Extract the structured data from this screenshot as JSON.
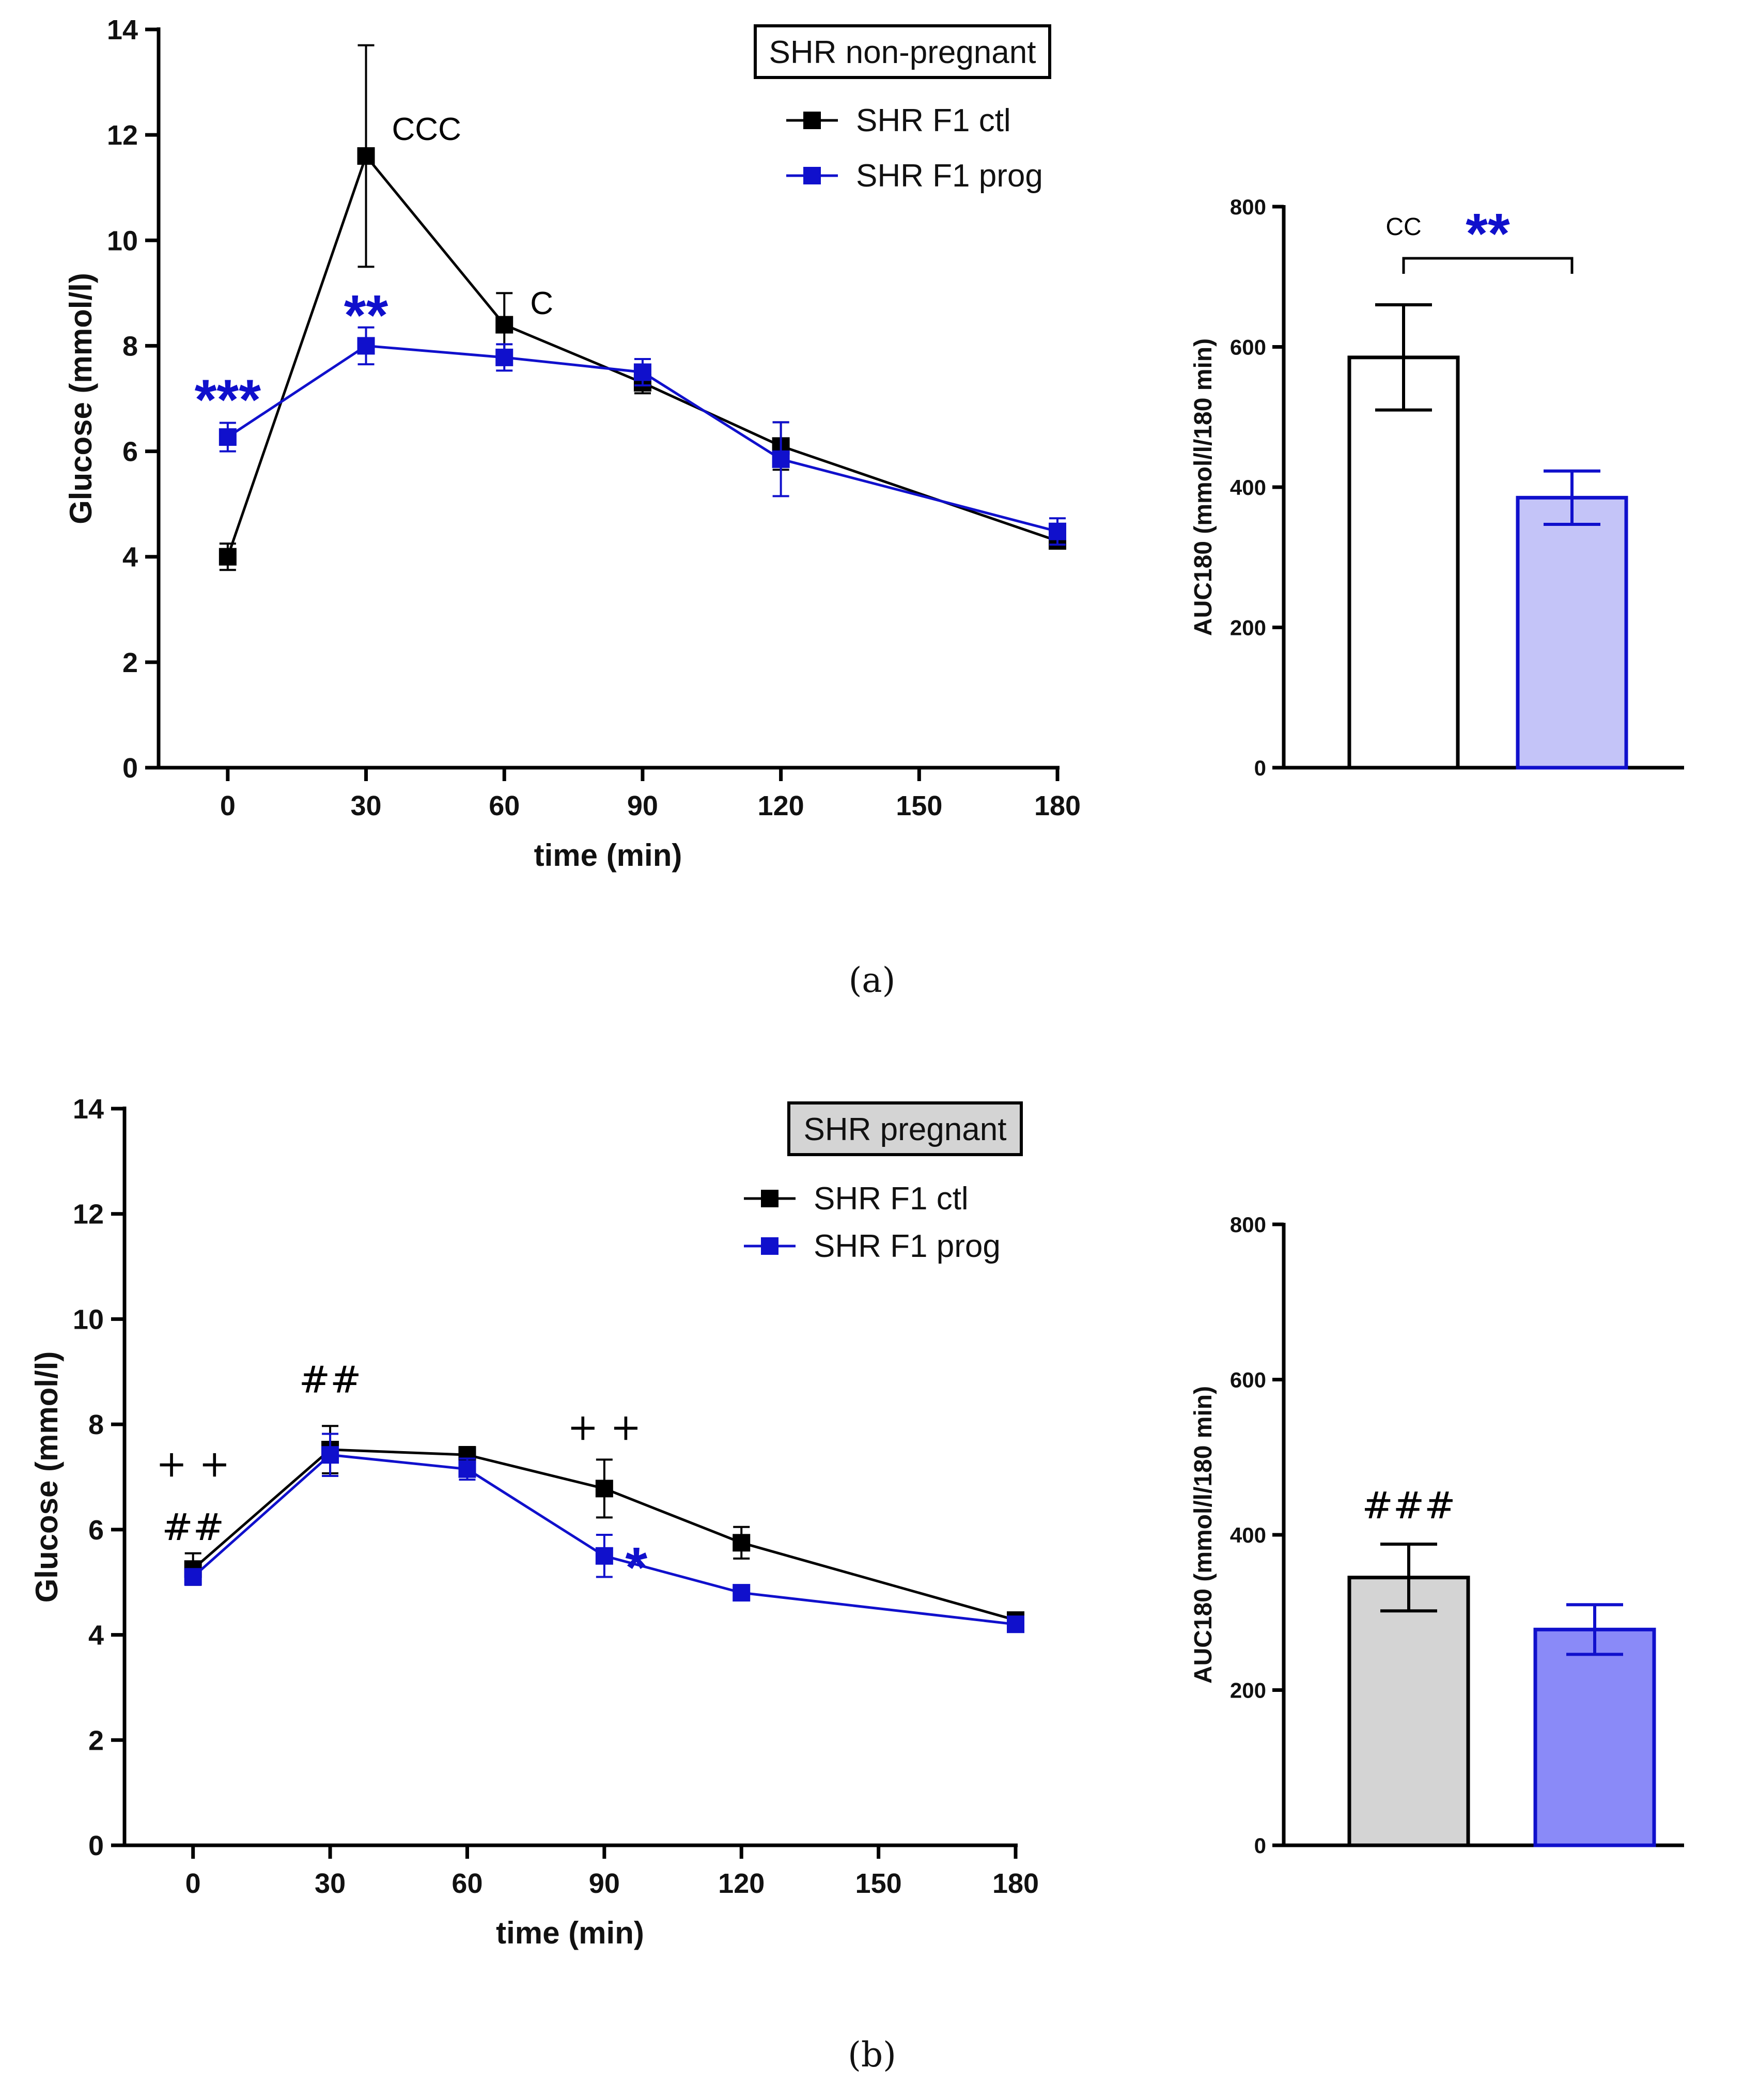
{
  "colors": {
    "ctl": "#000000",
    "prog": "#1010cc",
    "stat_blue": "#1a1add"
  },
  "chart_data": [
    {
      "id": "a-line",
      "type": "line",
      "title": "SHR non-pregnant",
      "xlabel": "time (min)",
      "ylabel": "Glucose (mmol/l)",
      "xlim": [
        -15,
        180
      ],
      "ylim": [
        0,
        14
      ],
      "xticks": [
        0,
        30,
        60,
        90,
        120,
        150,
        180
      ],
      "yticks": [
        0,
        2,
        4,
        6,
        8,
        10,
        12,
        14
      ],
      "x": [
        0,
        30,
        60,
        90,
        120,
        180
      ],
      "series": [
        {
          "name": "SHR F1 ctl",
          "values": [
            4.0,
            11.6,
            8.4,
            7.3,
            6.1,
            4.3
          ],
          "err": [
            0.25,
            2.1,
            0.6,
            0.2,
            0.45,
            0.1
          ]
        },
        {
          "name": "SHR F1 prog",
          "values": [
            6.27,
            8.0,
            7.78,
            7.5,
            5.85,
            4.48
          ],
          "err": [
            0.27,
            0.35,
            0.25,
            0.25,
            0.7,
            0.25
          ]
        }
      ],
      "annotations": [
        {
          "text": "***",
          "x": 0,
          "y": 7.0,
          "color": "prog",
          "style": "star"
        },
        {
          "text": "**",
          "x": 30,
          "y": 8.6,
          "color": "prog",
          "style": "star"
        },
        {
          "text": "CCC",
          "x": 30,
          "y": 12.1,
          "color": "ctl",
          "style": "text"
        },
        {
          "text": "C",
          "x": 60,
          "y": 8.8,
          "color": "ctl",
          "style": "text"
        }
      ]
    },
    {
      "id": "a-bar",
      "type": "bar",
      "ylabel": "AUC180 (mmol/l/180 min)",
      "ylim": [
        0,
        800
      ],
      "yticks": [
        0,
        200,
        400,
        600,
        800
      ],
      "categories": [
        "SHR F1 ctl",
        "SHR F1 prog"
      ],
      "values": [
        585,
        385
      ],
      "err": [
        75,
        38
      ],
      "fills": [
        "#ffffff",
        "#c4c4f8"
      ],
      "strokes": [
        "#000000",
        "#1010cc"
      ],
      "annotations": [
        {
          "text": "CC",
          "color": "ctl",
          "style": "text"
        },
        {
          "text": "**",
          "color": "prog",
          "style": "star"
        }
      ]
    },
    {
      "id": "b-line",
      "type": "line",
      "title": "SHR pregnant",
      "xlabel": "time (min)",
      "ylabel": "Glucose (mmol/l)",
      "xlim": [
        -15,
        180
      ],
      "ylim": [
        0,
        14
      ],
      "xticks": [
        0,
        30,
        60,
        90,
        120,
        150,
        180
      ],
      "yticks": [
        0,
        2,
        4,
        6,
        8,
        10,
        12,
        14
      ],
      "x": [
        0,
        30,
        60,
        90,
        120,
        180
      ],
      "series": [
        {
          "name": "SHR F1 ctl",
          "values": [
            5.25,
            7.52,
            7.42,
            6.78,
            5.75,
            4.28
          ],
          "err": [
            0.3,
            0.45,
            0.15,
            0.55,
            0.3,
            0.08
          ]
        },
        {
          "name": "SHR F1 prog",
          "values": [
            5.1,
            7.42,
            7.15,
            5.5,
            4.8,
            4.2
          ],
          "err": [
            0.15,
            0.4,
            0.2,
            0.4,
            0.1,
            0.08
          ]
        }
      ],
      "annotations": [
        {
          "text": "+ +",
          "x": 0,
          "y": 7.2,
          "color": "ctl",
          "style": "hash"
        },
        {
          "text": "##",
          "x": 0,
          "y": 6.0,
          "color": "ctl",
          "style": "hash"
        },
        {
          "text": "##",
          "x": 30,
          "y": 8.8,
          "color": "ctl",
          "style": "hash"
        },
        {
          "text": "+ +",
          "x": 90,
          "y": 7.9,
          "color": "ctl",
          "style": "hash"
        },
        {
          "text": "*",
          "x": 97,
          "y": 5.3,
          "color": "prog",
          "style": "star"
        }
      ]
    },
    {
      "id": "b-bar",
      "type": "bar",
      "ylabel": "AUC180 (mmol/l/180 min)",
      "ylim": [
        0,
        800
      ],
      "yticks": [
        0,
        200,
        400,
        600,
        800
      ],
      "categories": [
        "SHR F1 ctl",
        "SHR F1 prog"
      ],
      "values": [
        345,
        278
      ],
      "err": [
        43,
        32
      ],
      "fills": [
        "#d4d4d4",
        "#8a8af8"
      ],
      "strokes": [
        "#000000",
        "#1010cc"
      ],
      "annotations": [
        {
          "text": "###",
          "color": "ctl",
          "style": "hash"
        }
      ]
    }
  ],
  "panel_labels": {
    "a": "(a)",
    "b": "(b)"
  }
}
